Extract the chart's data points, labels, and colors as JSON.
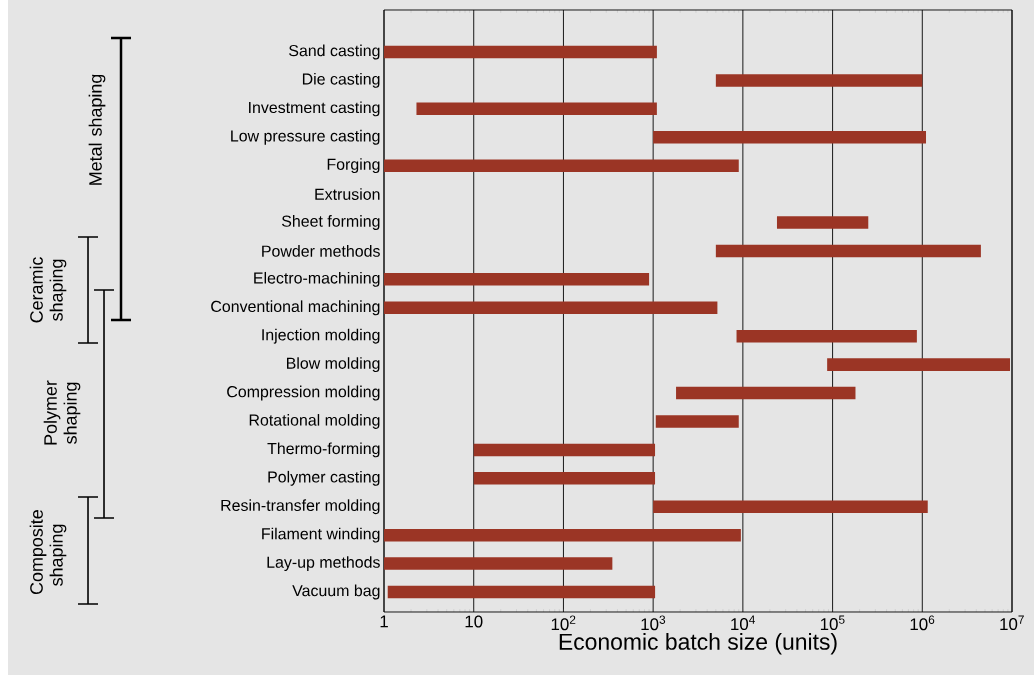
{
  "chart_data": {
    "type": "bar",
    "orientation": "horizontal",
    "log": "x",
    "xlabel": "Economic batch size (units)",
    "categories": [
      "Sand casting",
      "Die casting",
      "Investment casting",
      "Low pressure casting",
      "Forging",
      "Extrusion",
      "Sheet forming",
      "Powder methods",
      "Electro-machining",
      "Conventional machining",
      "Injection molding",
      "Blow molding",
      "Compression molding",
      "Rotational molding",
      "Thermo-forming",
      "Polymer casting",
      "Resin-transfer molding",
      "Filament winding",
      "Lay-up methods",
      "Vacuum bag"
    ],
    "base": [
      1,
      5000,
      2.3,
      1000,
      1,
      null,
      24000,
      5000,
      1,
      1,
      8500,
      87000,
      1800,
      1070,
      10,
      10,
      1000,
      1,
      1,
      1.1
    ],
    "values": [
      1100,
      995000,
      1098,
      1099000,
      9000,
      null,
      226000,
      4495000,
      900,
      5200,
      861500,
      9413000,
      178200,
      7930,
      1040,
      1040,
      1149000,
      9500,
      350,
      1050
    ],
    "color": "#9b3525",
    "xlim": [
      1,
      10000000
    ],
    "xticks": [
      1,
      10,
      {
        "value": 100,
        "label": "10$^{2}$"
      },
      {
        "value": 1000,
        "label": "10$^{3}$"
      },
      {
        "value": 10000,
        "label": "10$^{4}$"
      },
      {
        "value": 100000,
        "label": "10$^{5}$"
      },
      {
        "value": 1000000,
        "label": "10$^{6}$"
      },
      {
        "value": 10000000,
        "label": "10$^{7}$"
      }
    ],
    "grid": "x",
    "annotations": [
      "Metal shaping",
      "Ceramic shaping",
      "Polymer shaping",
      "Composite shaping"
    ]
  }
}
